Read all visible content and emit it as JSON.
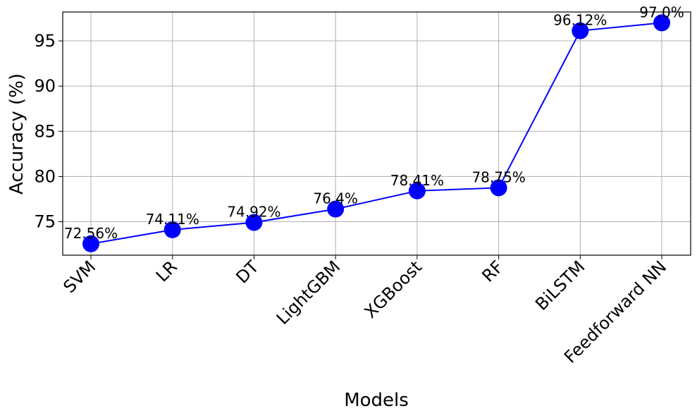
{
  "chart_data": {
    "type": "line",
    "title": "",
    "xlabel": "Models",
    "ylabel": "Accuracy (%)",
    "categories": [
      "SVM",
      "LR",
      "DT",
      "LightGBM",
      "XGBoost",
      "RF",
      "BiLSTM",
      "Feedforward NN"
    ],
    "values": [
      72.56,
      74.11,
      74.92,
      76.4,
      78.41,
      78.75,
      96.12,
      97.0
    ],
    "data_labels": [
      "72.56%",
      "74.11%",
      "74.92%",
      "76.4%",
      "78.41%",
      "78.75%",
      "96.12%",
      "97.0%"
    ],
    "ylim": [
      71.3,
      98.2
    ],
    "yticks": [
      75,
      80,
      85,
      90,
      95
    ],
    "grid": true,
    "line_color": "#0000ff",
    "marker_color": "#0000ff"
  }
}
